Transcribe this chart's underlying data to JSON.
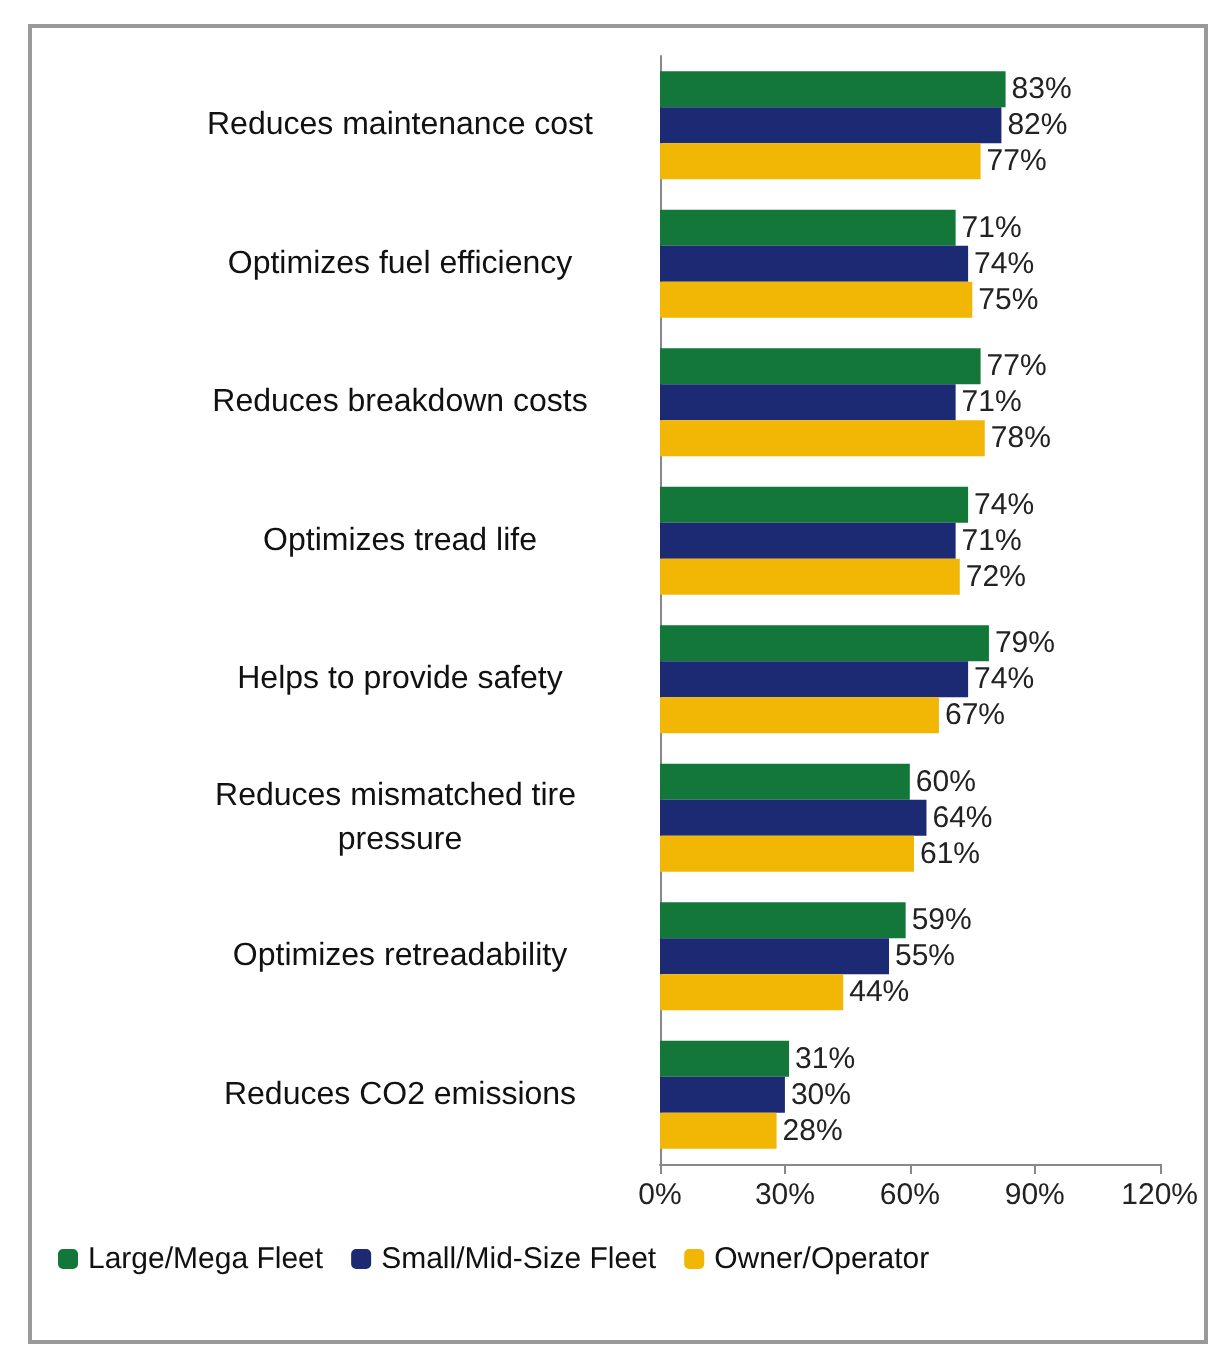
{
  "chart_data": {
    "type": "bar",
    "orientation": "horizontal",
    "categories": [
      "Reduces maintenance cost",
      "Optimizes fuel efficiency",
      "Reduces breakdown costs",
      "Optimizes tread life",
      "Helps to provide safety",
      "Reduces mismatched tire pressure",
      "Optimizes retreadability",
      "Reduces CO2 emissions"
    ],
    "series": [
      {
        "name": "Large/Mega Fleet",
        "color": "#13773a",
        "values": [
          83,
          71,
          77,
          74,
          79,
          60,
          59,
          31
        ],
        "value_labels": [
          "83%",
          "71%",
          "77%",
          "74%",
          "79%",
          "60%",
          "59%",
          "31%"
        ]
      },
      {
        "name": "Small/Mid-Size Fleet",
        "color": "#1b2a72",
        "values": [
          82,
          74,
          71,
          71,
          74,
          64,
          55,
          30
        ],
        "value_labels": [
          "82%",
          "74%",
          "71%",
          "71%",
          "74%",
          "64%",
          "55%",
          "30%"
        ]
      },
      {
        "name": "Owner/Operator",
        "color": "#f2b705",
        "values": [
          77,
          75,
          78,
          72,
          67,
          61,
          44,
          28
        ],
        "value_labels": [
          "77%",
          "75%",
          "78%",
          "72%",
          "67%",
          "61%",
          "44%",
          "28%"
        ]
      }
    ],
    "xlim": [
      0,
      120
    ],
    "xticks": [
      {
        "value": 0,
        "label": "0%"
      },
      {
        "value": 30,
        "label": "30%"
      },
      {
        "value": 60,
        "label": "60%"
      },
      {
        "value": 90,
        "label": "90%"
      },
      {
        "value": 120,
        "label": "120%"
      }
    ],
    "grid": false,
    "legend": "bottom"
  }
}
